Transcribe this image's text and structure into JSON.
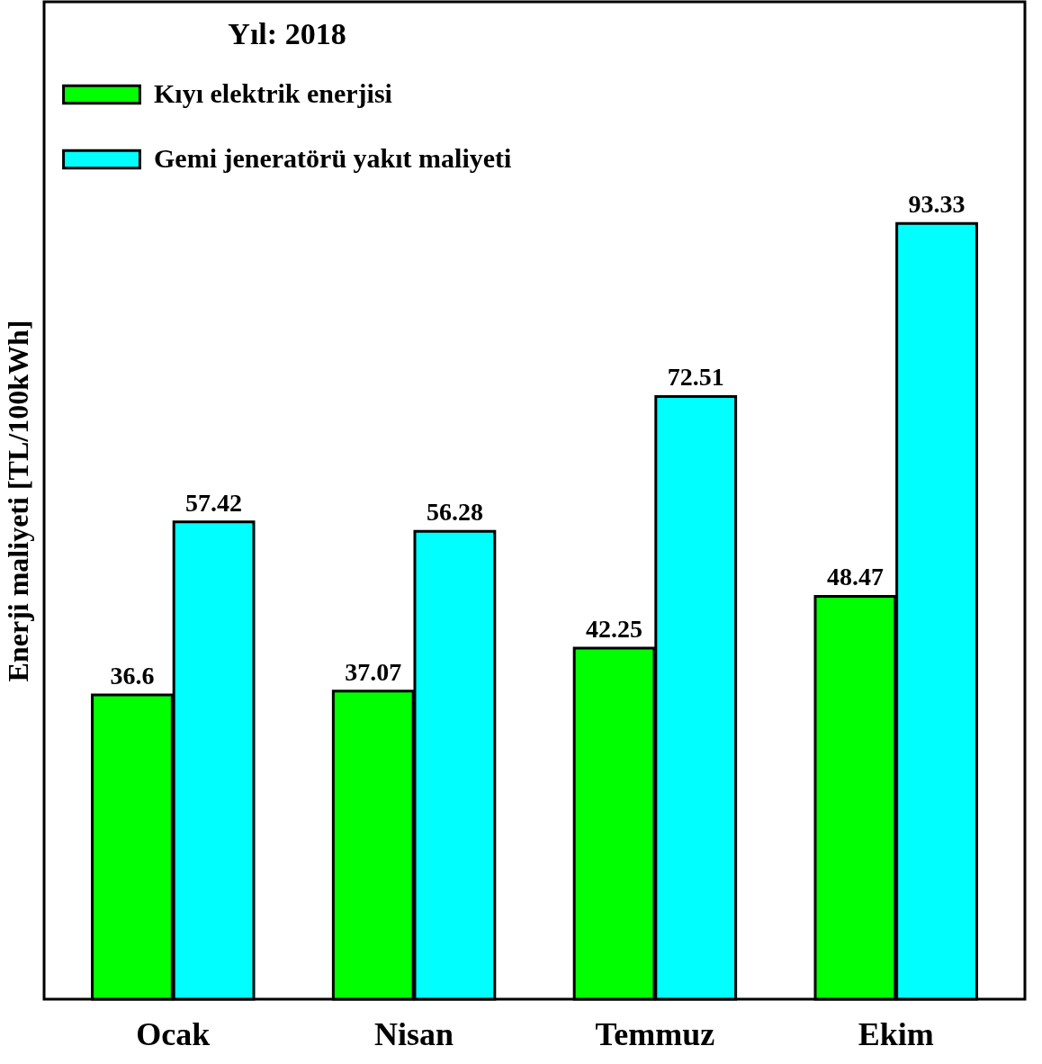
{
  "chart_data": {
    "type": "bar",
    "legend_title": "Yıl: 2018",
    "ylabel": "Enerji maliyeti [TL/100kWh]",
    "categories": [
      "Ocak",
      "Nisan",
      "Temmuz",
      "Ekim"
    ],
    "series": [
      {
        "name": "Kıyı elektrik enerjisi",
        "color": "#00ff00",
        "values": [
          36.6,
          37.07,
          42.25,
          48.47
        ]
      },
      {
        "name": "Gemi jeneratörü yakıt maliyeti",
        "color": "#00ffff",
        "values": [
          57.42,
          56.28,
          72.51,
          93.33
        ]
      }
    ],
    "ylim": [
      0,
      120
    ],
    "data_labels": true,
    "legend": "top left",
    "grid": false,
    "tick_labels": "x"
  }
}
